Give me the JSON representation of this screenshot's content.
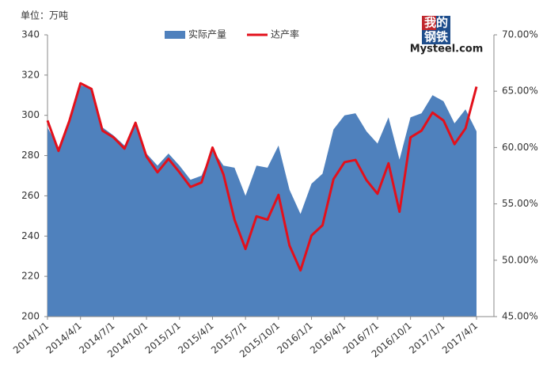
{
  "chart_data": {
    "type": "area-line",
    "y_axis_label": "单位：万吨",
    "logo": {
      "top": "我的",
      "middle": "钢铁",
      "bottom": "Mysteel.com"
    },
    "categories": [
      "2014/1/1",
      null,
      null,
      "2014/4/1",
      null,
      null,
      "2014/7/1",
      null,
      null,
      "2014/10/1",
      null,
      null,
      "2015/1/1",
      null,
      null,
      "2015/4/1",
      null,
      null,
      "2015/7/1",
      null,
      null,
      "2015/10/1",
      null,
      null,
      "2016/1/1",
      null,
      null,
      "2016/4/1",
      null,
      null,
      "2016/7/1",
      null,
      null,
      "2016/10/1",
      null,
      null,
      "2017/1/1",
      null,
      null,
      "2017/4/1"
    ],
    "series": [
      {
        "name": "实际产量",
        "color": "#4f81bd",
        "axis": "y",
        "values": [
          294,
          284,
          298,
          315,
          313,
          294,
          290,
          285,
          296,
          281,
          275,
          281,
          275,
          268,
          270,
          283,
          275,
          274,
          260,
          275,
          274,
          285,
          263,
          251,
          266,
          271,
          293,
          300,
          301,
          292,
          286,
          299,
          278,
          299,
          301,
          310,
          307,
          296,
          303,
          292
        ]
      },
      {
        "name": "达产率",
        "color": "#e3101b",
        "axis": "y2",
        "values": [
          62.4,
          59.7,
          62.4,
          65.7,
          65.2,
          61.5,
          60.9,
          59.9,
          62.2,
          59.2,
          57.8,
          59.0,
          57.8,
          56.5,
          56.9,
          60.0,
          57.6,
          53.6,
          51.0,
          53.9,
          53.6,
          55.8,
          51.3,
          49.1,
          52.2,
          53.1,
          57.2,
          58.7,
          58.9,
          57.1,
          55.9,
          58.6,
          54.3,
          60.9,
          61.5,
          63.1,
          62.4,
          60.3,
          61.7,
          65.4
        ]
      }
    ],
    "ylim": [
      200,
      340
    ],
    "yticks": [
      200,
      220,
      240,
      260,
      280,
      300,
      320,
      340
    ],
    "y2lim": [
      45,
      70
    ],
    "y2ticks": [
      {
        "value": 45,
        "label": "45.00%"
      },
      {
        "value": 50,
        "label": "50.00%"
      },
      {
        "value": 55,
        "label": "55.00%"
      },
      {
        "value": 60,
        "label": "60.00%"
      },
      {
        "value": 65,
        "label": "65.00%"
      },
      {
        "value": 70,
        "label": "70.00%"
      }
    ],
    "legend": "top"
  }
}
